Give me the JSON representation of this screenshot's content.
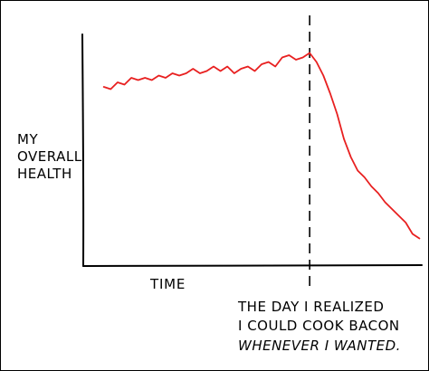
{
  "chart_data": {
    "type": "line",
    "title": "",
    "ylabel_lines": [
      "MY",
      "OVERALL",
      "HEALTH"
    ],
    "xlabel": "TIME",
    "annotation_lines": [
      "THE DAY I REALIZED",
      "I COULD COOK BACON",
      "WHENEVER I WANTED."
    ],
    "event_x": 0.66,
    "xlim": [
      0,
      1
    ],
    "ylim": [
      0,
      1
    ],
    "grid": false,
    "series": [
      {
        "color": "#e82020",
        "x": [
          0.06,
          0.08,
          0.1,
          0.12,
          0.14,
          0.16,
          0.18,
          0.2,
          0.22,
          0.24,
          0.26,
          0.28,
          0.3,
          0.32,
          0.34,
          0.36,
          0.38,
          0.4,
          0.42,
          0.44,
          0.46,
          0.48,
          0.5,
          0.52,
          0.54,
          0.56,
          0.58,
          0.6,
          0.62,
          0.64,
          0.66,
          0.68,
          0.7,
          0.72,
          0.74,
          0.76,
          0.78,
          0.8,
          0.82,
          0.84,
          0.86,
          0.88,
          0.9,
          0.92,
          0.94,
          0.96,
          0.98
        ],
        "y": [
          0.78,
          0.77,
          0.8,
          0.79,
          0.82,
          0.81,
          0.82,
          0.81,
          0.83,
          0.82,
          0.84,
          0.83,
          0.84,
          0.86,
          0.84,
          0.85,
          0.87,
          0.85,
          0.87,
          0.84,
          0.86,
          0.87,
          0.85,
          0.88,
          0.89,
          0.87,
          0.91,
          0.92,
          0.9,
          0.91,
          0.93,
          0.89,
          0.83,
          0.75,
          0.66,
          0.55,
          0.47,
          0.41,
          0.38,
          0.34,
          0.31,
          0.27,
          0.24,
          0.21,
          0.18,
          0.13,
          0.11
        ]
      }
    ]
  }
}
